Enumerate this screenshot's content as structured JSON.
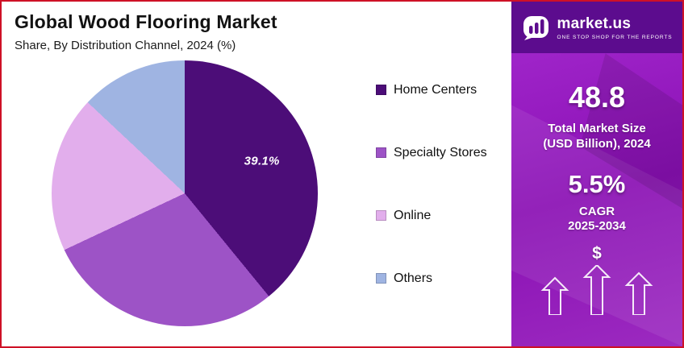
{
  "frame": {
    "border_color": "#CE1126"
  },
  "header": {
    "title": "Global Wood Flooring Market",
    "subtitle": "Share, By Distribution Channel, 2024 (%)"
  },
  "chart_data": {
    "type": "pie",
    "title": "Global Wood Flooring Market",
    "subtitle": "Share, By Distribution Channel, 2024 (%)",
    "unit": "%",
    "start_angle": "12 o'clock, clockwise",
    "legend_position": "right",
    "slices": [
      {
        "name": "Home Centers",
        "value": 39.1,
        "color": "#4C0D78",
        "label": "39.1%"
      },
      {
        "name": "Specialty Stores",
        "value": 28.9,
        "color": "#9D53C6",
        "label": ""
      },
      {
        "name": "Online",
        "value": 19.0,
        "color": "#E2AEEC",
        "label": ""
      },
      {
        "name": "Others",
        "value": 13.0,
        "color": "#9FB4E2",
        "label": ""
      }
    ]
  },
  "sidebar": {
    "logo": {
      "brand": "market.us",
      "tagline": "ONE STOP SHOP FOR THE REPORTS"
    },
    "market_size": {
      "value": "48.8",
      "label_line1": "Total Market Size",
      "label_line2": "(USD Billion), 2024"
    },
    "cagr": {
      "value": "5.5%",
      "label_line1": "CAGR",
      "label_line2": "2025-2034"
    },
    "dollar_symbol": "$",
    "colors": {
      "band": "#5C0C8E",
      "gradient_start": "#A62BD0",
      "gradient_end": "#8A10B4"
    }
  }
}
